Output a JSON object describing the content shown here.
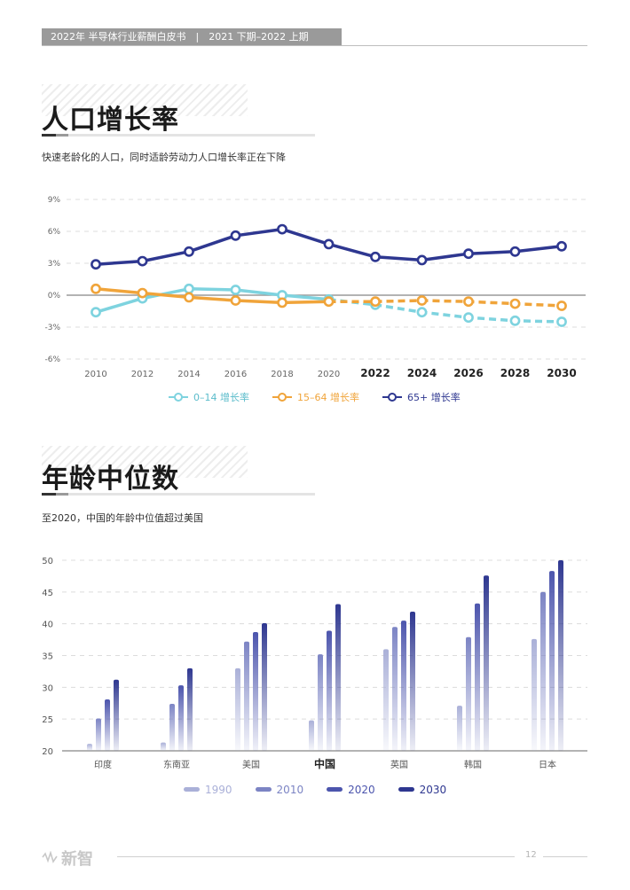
{
  "header": {
    "text": "2022年 半导体行业薪酬白皮书　|　2021 下期–2022 上期"
  },
  "section1": {
    "title": "人口增长率",
    "subtitle": "快速老龄化的人口，同时适龄劳动力人口增长率正在下降"
  },
  "section2": {
    "title": "年龄中位数",
    "subtitle": "至2020，中国的年龄中位值超过美国"
  },
  "footer": {
    "logo": "新智",
    "page": "12"
  },
  "chart_data": [
    {
      "type": "line",
      "x": [
        2010,
        2012,
        2014,
        2016,
        2018,
        2020,
        2022,
        2024,
        2026,
        2028,
        2030
      ],
      "x_bold_from": 2022,
      "ylim": [
        -6,
        9
      ],
      "yticks": [
        "9%",
        "6%",
        "3%",
        "0%",
        "-3%",
        "-6%"
      ],
      "ytick_values": [
        9,
        6,
        3,
        0,
        -3,
        -6
      ],
      "grid": "dashed horizontal",
      "projection_start": 2020,
      "legend_position": "bottom",
      "series": [
        {
          "name": "0–14 增长率",
          "color": "#7ed3df",
          "values": [
            -1.6,
            -0.3,
            0.6,
            0.5,
            0.0,
            -0.4,
            -0.9,
            -1.6,
            -2.1,
            -2.4,
            -2.5
          ]
        },
        {
          "name": "15–64 增长率",
          "color": "#f0a43a",
          "values": [
            0.6,
            0.2,
            -0.2,
            -0.5,
            -0.7,
            -0.6,
            -0.6,
            -0.5,
            -0.6,
            -0.8,
            -1.0
          ]
        },
        {
          "name": "65+ 增长率",
          "color": "#2e3790",
          "values": [
            2.9,
            3.2,
            4.1,
            5.6,
            6.2,
            4.8,
            3.6,
            3.3,
            3.9,
            4.1,
            4.6
          ]
        }
      ]
    },
    {
      "type": "bar",
      "categories": [
        "印度",
        "东南亚",
        "美国",
        "中国",
        "英国",
        "韩国",
        "日本"
      ],
      "highlight_category": "中国",
      "ylim": [
        20,
        50
      ],
      "yticks": [
        50,
        45,
        40,
        35,
        30,
        25,
        20
      ],
      "grid": "dashed horizontal",
      "legend_position": "bottom",
      "series": [
        {
          "name": "1990",
          "color": "#aab0d8",
          "values": [
            21.1,
            21.3,
            33.0,
            24.8,
            36.0,
            27.1,
            37.6
          ]
        },
        {
          "name": "2010",
          "color": "#7c84c4",
          "values": [
            25.1,
            27.4,
            37.2,
            35.2,
            39.5,
            37.9,
            45.0
          ]
        },
        {
          "name": "2020",
          "color": "#4c55ad",
          "values": [
            28.1,
            30.3,
            38.7,
            38.9,
            40.5,
            43.2,
            48.3
          ]
        },
        {
          "name": "2030",
          "color": "#2e3790",
          "values": [
            31.2,
            33.0,
            40.1,
            43.1,
            41.9,
            47.6,
            50.0
          ]
        }
      ]
    }
  ]
}
